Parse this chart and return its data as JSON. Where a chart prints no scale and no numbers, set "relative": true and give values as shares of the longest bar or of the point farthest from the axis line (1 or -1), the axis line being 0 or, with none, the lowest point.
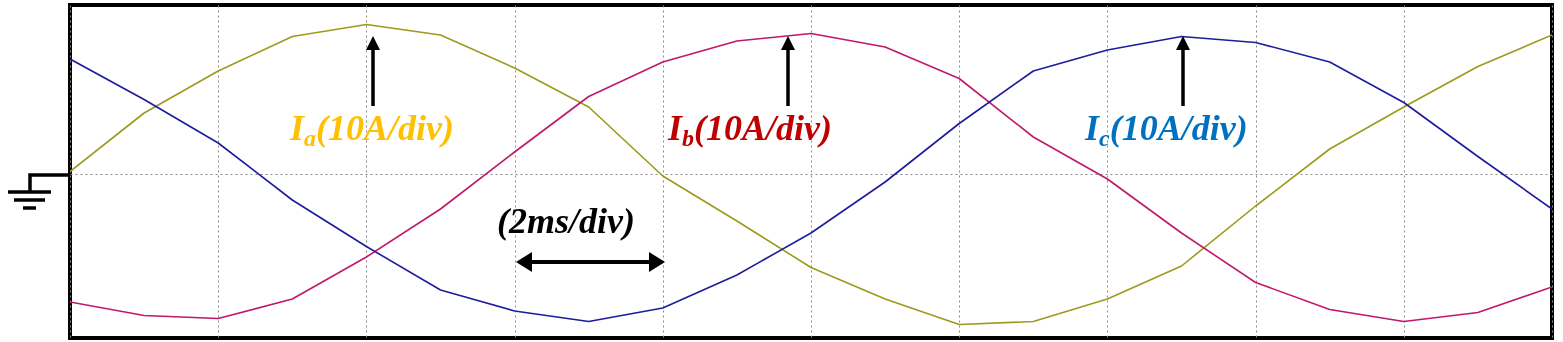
{
  "chart_data": {
    "type": "line",
    "relative": true,
    "grid": "x",
    "categories": [
      null,
      null,
      null,
      null,
      null,
      null,
      null,
      null,
      null,
      null,
      null,
      null,
      null,
      null,
      null,
      null,
      null,
      null,
      null,
      null,
      null
    ],
    "series": [
      {
        "color": "#9c9a1c",
        "values": [
          0.02,
          0.41,
          0.69,
          0.92,
          1,
          0.93,
          0.71,
          0.45,
          -0.01,
          -0.31,
          -0.62,
          -0.83,
          -1,
          -0.98,
          -0.83,
          -0.61,
          -0.21,
          0.17,
          0.45,
          0.72,
          0.93
        ]
      },
      {
        "color": "#c0186a",
        "values": [
          -0.85,
          -0.94,
          -0.96,
          -0.83,
          -0.55,
          -0.23,
          0.15,
          0.52,
          0.75,
          0.89,
          0.94,
          0.85,
          0.64,
          0.25,
          -0.03,
          -0.39,
          -0.72,
          -0.9,
          -0.98,
          -0.92,
          -0.75
        ]
      },
      {
        "color": "#1c1c9c",
        "values": [
          0.77,
          0.5,
          0.21,
          -0.17,
          -0.48,
          -0.77,
          -0.91,
          -0.98,
          -0.89,
          -0.67,
          -0.39,
          -0.05,
          0.34,
          0.69,
          0.83,
          0.92,
          0.88,
          0.75,
          0.48,
          0.12,
          -0.23
        ]
      }
    ],
    "annotations": [
      "I$_{a}$(10A/div)",
      "I$_{b}$(10A/div)",
      "I$_{c}$(10A/div)",
      "(2ms/div)"
    ]
  }
}
